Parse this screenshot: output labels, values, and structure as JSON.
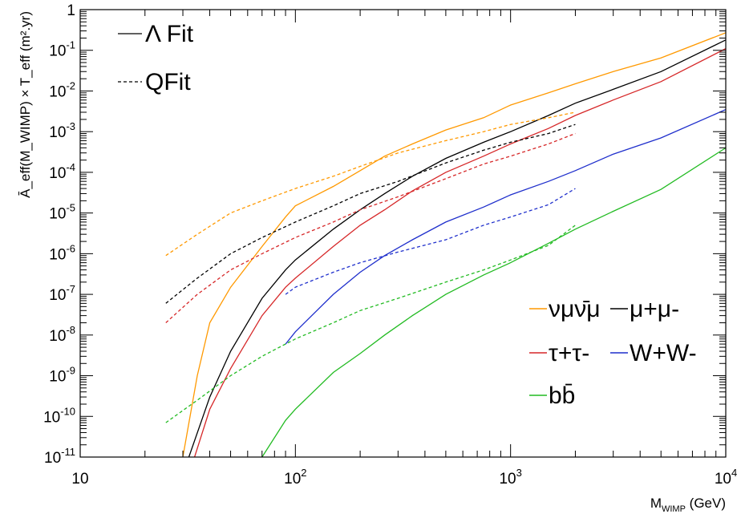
{
  "chart_data": {
    "type": "line",
    "xscale": "log",
    "yscale": "log",
    "xlim": [
      10,
      10000
    ],
    "ylim": [
      1e-11,
      1
    ],
    "xlabel": {
      "base": "M",
      "sub": "WIMP",
      "rest": " (GeV)"
    },
    "ylabel": {
      "text": "Ā_eff(M_WIMP) × T_eff (m².yr)"
    },
    "x_ticks": [
      {
        "base": "10",
        "exp": ""
      },
      {
        "base": "10",
        "exp": "2"
      },
      {
        "base": "10",
        "exp": "3"
      },
      {
        "base": "10",
        "exp": "4"
      }
    ],
    "y_ticks": [
      {
        "base": "10",
        "exp": "-11"
      },
      {
        "base": "10",
        "exp": "-10"
      },
      {
        "base": "10",
        "exp": "-9"
      },
      {
        "base": "10",
        "exp": "-8"
      },
      {
        "base": "10",
        "exp": "-7"
      },
      {
        "base": "10",
        "exp": "-6"
      },
      {
        "base": "10",
        "exp": "-5"
      },
      {
        "base": "10",
        "exp": "-4"
      },
      {
        "base": "10",
        "exp": "-3"
      },
      {
        "base": "10",
        "exp": "-2"
      },
      {
        "base": "10",
        "exp": "-1"
      },
      {
        "base": "1",
        "exp": ""
      }
    ],
    "line_styles": [
      {
        "label": "Λ Fit",
        "dash": "solid"
      },
      {
        "label": "QFit",
        "dash": "dashed"
      }
    ],
    "channel_legend": [
      {
        "label": "νμν̄μ",
        "color": "#ff9900"
      },
      {
        "label": "μ+μ-",
        "color": "#000000"
      },
      {
        "label": "τ+τ-",
        "color": "#d62728"
      },
      {
        "label": "W+W-",
        "color": "#1f2fcc"
      },
      {
        "label": "bb̄",
        "color": "#22bb22"
      }
    ],
    "series": [
      {
        "channel": "νμν̄μ",
        "fit": "Λ Fit",
        "color": "#ff9900",
        "dash": "solid",
        "x": [
          30,
          35,
          40,
          50,
          70,
          90,
          100,
          150,
          200,
          260,
          350,
          500,
          750,
          1000,
          1500,
          2000,
          3000,
          5000,
          10000
        ],
        "y": [
          1e-11,
          1e-09,
          2e-08,
          1.5e-07,
          1.5e-06,
          8e-06,
          1.5e-05,
          4.5e-05,
          0.00011,
          0.00025,
          0.0005,
          0.0011,
          0.0022,
          0.0045,
          0.009,
          0.015,
          0.03,
          0.065,
          0.27
        ]
      },
      {
        "channel": "μ+μ-",
        "fit": "Λ Fit",
        "color": "#000000",
        "dash": "solid",
        "x": [
          32,
          40,
          50,
          70,
          90,
          100,
          150,
          200,
          260,
          350,
          500,
          750,
          1000,
          1500,
          2000,
          3000,
          5000,
          10000
        ],
        "y": [
          1e-11,
          3e-10,
          4e-09,
          8e-08,
          4e-07,
          7e-07,
          4e-06,
          1.2e-05,
          3e-05,
          8e-05,
          0.00022,
          0.00055,
          0.001,
          0.0025,
          0.005,
          0.011,
          0.03,
          0.18
        ]
      },
      {
        "channel": "τ+τ-",
        "fit": "Λ Fit",
        "color": "#d62728",
        "dash": "solid",
        "x": [
          34,
          40,
          50,
          70,
          90,
          100,
          150,
          200,
          260,
          350,
          500,
          750,
          1000,
          1500,
          2000,
          3000,
          5000,
          10000
        ],
        "y": [
          1e-11,
          1.5e-10,
          1.5e-09,
          3e-08,
          1.5e-07,
          2.5e-07,
          1.5e-06,
          5e-06,
          1.2e-05,
          3.5e-05,
          0.0001,
          0.00025,
          0.0005,
          0.0012,
          0.0025,
          0.006,
          0.017,
          0.11
        ]
      },
      {
        "channel": "W+W-",
        "fit": "Λ Fit",
        "color": "#1f2fcc",
        "dash": "solid",
        "x": [
          90,
          100,
          150,
          200,
          260,
          350,
          500,
          750,
          1000,
          1500,
          2000,
          3000,
          5000,
          10000
        ],
        "y": [
          6e-09,
          1.2e-08,
          1e-07,
          3.5e-07,
          9e-07,
          2.2e-06,
          6e-06,
          1.4e-05,
          2.8e-05,
          6e-05,
          0.00011,
          0.00028,
          0.0007,
          0.0035
        ]
      },
      {
        "channel": "bb̄",
        "fit": "Λ Fit",
        "color": "#22bb22",
        "dash": "solid",
        "x": [
          70,
          90,
          100,
          150,
          200,
          260,
          350,
          500,
          750,
          1000,
          1500,
          2000,
          3000,
          5000,
          10000
        ],
        "y": [
          1e-11,
          8e-11,
          1.5e-10,
          1.2e-09,
          3.5e-09,
          1e-08,
          3e-08,
          1e-07,
          3e-07,
          6e-07,
          1.8e-06,
          4e-06,
          1.1e-05,
          3.8e-05,
          0.0004
        ]
      },
      {
        "channel": "νμν̄μ",
        "fit": "QFit",
        "color": "#ff9900",
        "dash": "dashed",
        "x": [
          25,
          35,
          50,
          70,
          100,
          150,
          200,
          300,
          500,
          750,
          1000,
          1500,
          2000
        ],
        "y": [
          9e-07,
          3e-06,
          1e-05,
          2e-05,
          4e-05,
          8e-05,
          0.00014,
          0.0003,
          0.0006,
          0.001,
          0.0015,
          0.0022,
          0.003
        ]
      },
      {
        "channel": "μ+μ-",
        "fit": "QFit",
        "color": "#000000",
        "dash": "dashed",
        "x": [
          25,
          35,
          50,
          70,
          100,
          150,
          200,
          300,
          500,
          750,
          1000,
          1500,
          2000
        ],
        "y": [
          6e-08,
          2.5e-07,
          1e-06,
          2.5e-06,
          6e-06,
          1.5e-05,
          3e-05,
          6e-05,
          0.00017,
          0.00035,
          0.00055,
          0.0009,
          0.0015
        ]
      },
      {
        "channel": "τ+τ-",
        "fit": "QFit",
        "color": "#d62728",
        "dash": "dashed",
        "x": [
          25,
          35,
          50,
          70,
          100,
          150,
          200,
          300,
          500,
          750,
          1000,
          1500,
          2000
        ],
        "y": [
          2e-08,
          1e-07,
          4e-07,
          1e-06,
          2.5e-06,
          6e-06,
          1.2e-05,
          2.5e-05,
          7e-05,
          0.00016,
          0.00025,
          0.0005,
          0.0009
        ]
      },
      {
        "channel": "W+W-",
        "fit": "QFit",
        "color": "#1f2fcc",
        "dash": "dashed",
        "x": [
          90,
          100,
          150,
          200,
          300,
          500,
          750,
          1000,
          1500,
          2000
        ],
        "y": [
          1e-07,
          1.5e-07,
          3.5e-07,
          6e-07,
          1.1e-06,
          2.2e-06,
          5e-06,
          8e-06,
          1.6e-05,
          4e-05
        ]
      },
      {
        "channel": "bb̄",
        "fit": "QFit",
        "color": "#22bb22",
        "dash": "dashed",
        "x": [
          25,
          35,
          50,
          70,
          100,
          150,
          200,
          300,
          500,
          750,
          1000,
          1500,
          2000
        ],
        "y": [
          7e-11,
          2.5e-10,
          1e-09,
          3e-09,
          8e-09,
          2e-08,
          4e-08,
          8e-08,
          2e-07,
          4e-07,
          7e-07,
          1.6e-06,
          5e-06
        ]
      }
    ]
  }
}
